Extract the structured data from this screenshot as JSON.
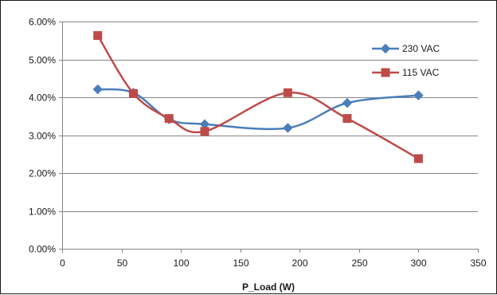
{
  "chart_data": {
    "type": "line",
    "title": "",
    "xlabel": "P_Load (W)",
    "ylabel": "",
    "xlim": [
      0,
      350
    ],
    "ylim": [
      0,
      0.06
    ],
    "x_ticks": [
      0,
      50,
      100,
      150,
      200,
      250,
      300,
      350
    ],
    "y_ticks": [
      0.0,
      0.01,
      0.02,
      0.03,
      0.04,
      0.05,
      0.06
    ],
    "x_tick_labels": [
      "0",
      "50",
      "100",
      "150",
      "200",
      "250",
      "300",
      "350"
    ],
    "y_tick_labels": [
      "0.00%",
      "1.00%",
      "2.00%",
      "3.00%",
      "4.00%",
      "5.00%",
      "6.00%"
    ],
    "grid": "horizontal",
    "smooth": true,
    "legend_position": "right",
    "series": [
      {
        "name": "230 VAC",
        "color": "#4a7ebb",
        "marker": "diamond",
        "x": [
          30,
          60,
          90,
          120,
          190,
          240,
          300
        ],
        "y": [
          0.0421,
          0.0412,
          0.0342,
          0.0329,
          0.0319,
          0.0385,
          0.0405
        ]
      },
      {
        "name": "115 VAC",
        "color": "#be4b48",
        "marker": "square",
        "x": [
          30,
          60,
          90,
          120,
          190,
          240,
          300
        ],
        "y": [
          0.0563,
          0.041,
          0.0344,
          0.031,
          0.0412,
          0.0344,
          0.0238
        ]
      }
    ]
  }
}
